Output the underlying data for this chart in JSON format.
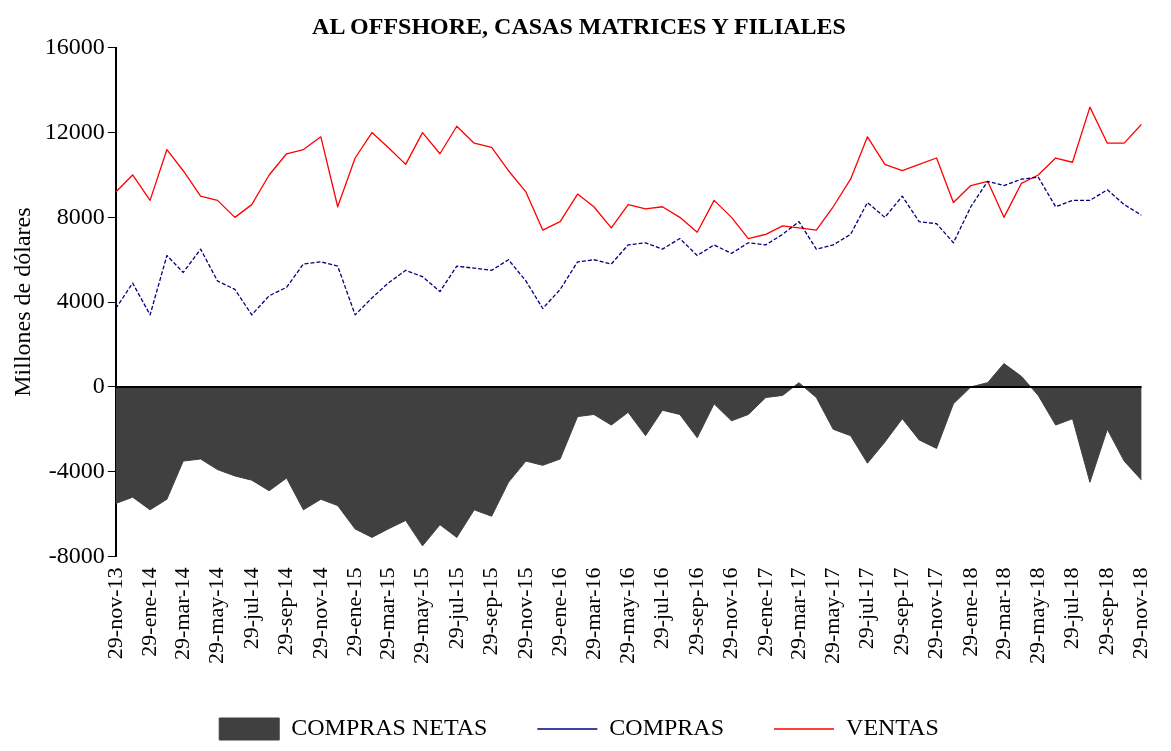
{
  "chart_data": {
    "type": "line",
    "title": "AL OFFSHORE, CASAS MATRICES Y FILIALES",
    "ylabel": "Millones de dólares",
    "x": [
      "2013-11-29",
      "2013-12-29",
      "2014-01-29",
      "2014-02-28",
      "2014-03-29",
      "2014-04-29",
      "2014-05-29",
      "2014-06-29",
      "2014-07-29",
      "2014-08-29",
      "2014-09-29",
      "2014-10-29",
      "2014-11-29",
      "2014-12-29",
      "2015-01-29",
      "2015-02-28",
      "2015-03-29",
      "2015-04-29",
      "2015-05-29",
      "2015-06-29",
      "2015-07-29",
      "2015-08-29",
      "2015-09-29",
      "2015-10-29",
      "2015-11-29",
      "2015-12-29",
      "2016-01-29",
      "2016-02-29",
      "2016-03-29",
      "2016-04-29",
      "2016-05-29",
      "2016-06-29",
      "2016-07-29",
      "2016-08-29",
      "2016-09-29",
      "2016-10-29",
      "2016-11-29",
      "2016-12-29",
      "2017-01-29",
      "2017-02-28",
      "2017-03-29",
      "2017-04-29",
      "2017-05-29",
      "2017-06-29",
      "2017-07-29",
      "2017-08-29",
      "2017-09-29",
      "2017-10-29",
      "2017-11-29",
      "2017-12-29",
      "2018-01-29",
      "2018-02-28",
      "2018-03-29",
      "2018-04-29",
      "2018-05-29",
      "2018-06-29",
      "2018-07-29",
      "2018-08-29",
      "2018-09-29",
      "2018-10-29",
      "2018-11-29"
    ],
    "series": [
      {
        "name": "COMPRAS NETAS",
        "type": "area",
        "color": "#404040",
        "values": [
          -5500,
          -5200,
          -5800,
          -5300,
          -3500,
          -3400,
          -3900,
          -4200,
          -4400,
          -4900,
          -4300,
          -5800,
          -5300,
          -5600,
          -6700,
          -7100,
          -6700,
          -6300,
          -7500,
          -6500,
          -7100,
          -5800,
          -6100,
          -4500,
          -3500,
          -3700,
          -3400,
          -1400,
          -1300,
          -1800,
          -1200,
          -2300,
          -1100,
          -1300,
          -2400,
          -800,
          -1600,
          -1300,
          -500,
          -400,
          200,
          -500,
          -2000,
          -2300,
          -3600,
          -2600,
          -1500,
          -2500,
          -2900,
          -800,
          0,
          200,
          1100,
          500,
          -400,
          -1800,
          -1500,
          -4500,
          -2000,
          -3500,
          -4400
        ]
      },
      {
        "name": "COMPRAS",
        "type": "line",
        "line_style": "dashed",
        "color": "#000080",
        "values": [
          3700,
          4900,
          3400,
          6200,
          5400,
          6500,
          5000,
          4600,
          3400,
          4300,
          4700,
          5800,
          5900,
          5700,
          3400,
          4200,
          4900,
          5500,
          5200,
          4500,
          5700,
          5600,
          5500,
          6000,
          5000,
          3700,
          4600,
          5900,
          6000,
          5800,
          6700,
          6800,
          6500,
          7000,
          6200,
          6700,
          6300,
          6800,
          6700,
          7200,
          7800,
          6500,
          6700,
          7200,
          8700,
          8000,
          9000,
          7800,
          7700,
          6800,
          8500,
          9700,
          9500,
          9800,
          9900,
          8500,
          8800,
          8800,
          9300,
          8600,
          8100
        ]
      },
      {
        "name": "VENTAS",
        "type": "line",
        "line_style": "solid",
        "color": "#ff0000",
        "values": [
          9200,
          10000,
          8800,
          11200,
          10200,
          9000,
          8800,
          8000,
          8600,
          10000,
          11000,
          11200,
          11800,
          8500,
          10800,
          12000,
          11300,
          10500,
          12000,
          11000,
          12300,
          11500,
          11300,
          10200,
          9200,
          7400,
          7800,
          9100,
          8500,
          7500,
          8600,
          8400,
          8500,
          8000,
          7300,
          8800,
          8000,
          7000,
          7200,
          7600,
          7500,
          7400,
          8500,
          9800,
          11800,
          10500,
          10200,
          10500,
          10800,
          8700,
          9500,
          9700,
          8000,
          9600,
          10000,
          10800,
          10600,
          13200,
          11500,
          11500,
          12400
        ]
      }
    ],
    "xlim": [
      "2013-11-29",
      "2018-11-29"
    ],
    "xticks": [
      {
        "value": "2013-11-29",
        "label": "29-nov-13"
      },
      {
        "value": "2014-01-29",
        "label": "29-ene-14"
      },
      {
        "value": "2014-03-29",
        "label": "29-mar-14"
      },
      {
        "value": "2014-05-29",
        "label": "29-may-14"
      },
      {
        "value": "2014-07-29",
        "label": "29-jul-14"
      },
      {
        "value": "2014-09-29",
        "label": "29-sep-14"
      },
      {
        "value": "2014-11-29",
        "label": "29-nov-14"
      },
      {
        "value": "2015-01-29",
        "label": "29-ene-15"
      },
      {
        "value": "2015-03-29",
        "label": "29-mar-15"
      },
      {
        "value": "2015-05-29",
        "label": "29-may-15"
      },
      {
        "value": "2015-07-29",
        "label": "29-jul-15"
      },
      {
        "value": "2015-09-29",
        "label": "29-sep-15"
      },
      {
        "value": "2015-11-29",
        "label": "29-nov-15"
      },
      {
        "value": "2016-01-29",
        "label": "29-ene-16"
      },
      {
        "value": "2016-03-29",
        "label": "29-mar-16"
      },
      {
        "value": "2016-05-29",
        "label": "29-may-16"
      },
      {
        "value": "2016-07-29",
        "label": "29-jul-16"
      },
      {
        "value": "2016-09-29",
        "label": "29-sep-16"
      },
      {
        "value": "2016-11-29",
        "label": "29-nov-16"
      },
      {
        "value": "2017-01-29",
        "label": "29-ene-17"
      },
      {
        "value": "2017-03-29",
        "label": "29-mar-17"
      },
      {
        "value": "2017-05-29",
        "label": "29-may-17"
      },
      {
        "value": "2017-07-29",
        "label": "29-jul-17"
      },
      {
        "value": "2017-09-29",
        "label": "29-sep-17"
      },
      {
        "value": "2017-11-29",
        "label": "29-nov-17"
      },
      {
        "value": "2018-01-29",
        "label": "29-ene-18"
      },
      {
        "value": "2018-03-29",
        "label": "29-mar-18"
      },
      {
        "value": "2018-05-29",
        "label": "29-may-18"
      },
      {
        "value": "2018-07-29",
        "label": "29-jul-18"
      },
      {
        "value": "2018-09-29",
        "label": "29-sep-18"
      },
      {
        "value": "2018-11-29",
        "label": "29-nov-18"
      }
    ],
    "ylim": [
      -8000,
      16000
    ],
    "yticks": [
      -8000,
      -4000,
      0,
      4000,
      8000,
      12000,
      16000
    ],
    "ref_lines": [
      {
        "axis": "y",
        "value": 0,
        "color": "#000000"
      }
    ],
    "grid": false,
    "legend": "bottom",
    "marker": "none"
  }
}
